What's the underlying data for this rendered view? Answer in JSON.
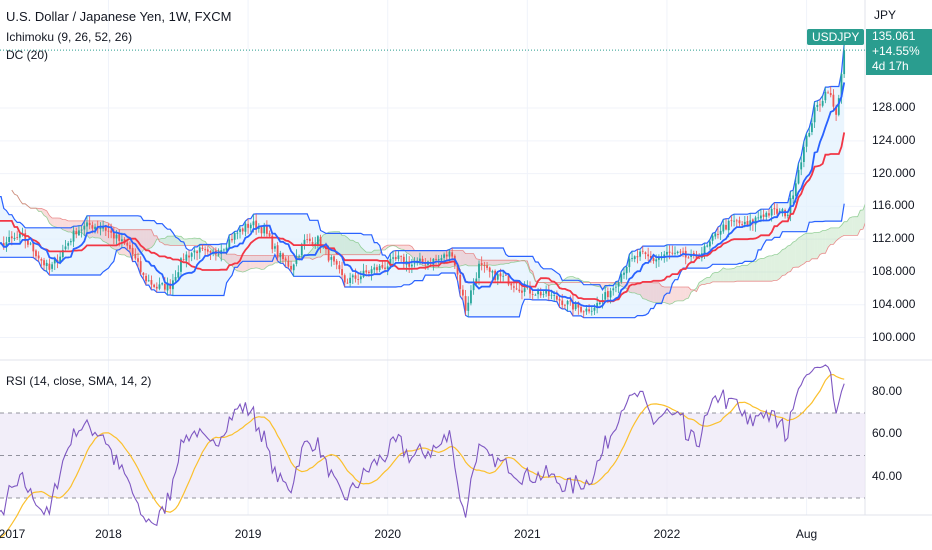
{
  "header": {
    "title": "U.S. Dollar / Japanese Yen, 1W, FXCM",
    "ichimoku_label": "Ichimoku (9, 26, 52, 26)",
    "dc_label": "DC (20)",
    "rsi_label": "RSI (14, close, SMA, 14, 2)"
  },
  "price_tag": {
    "symbol": "USDJPY",
    "price": "135.061",
    "change": "+14.55%",
    "countdown": "4d 17h"
  },
  "colors": {
    "up_candle": "#26a69a",
    "down_candle": "#ef5350",
    "tenkan": "#2962ff",
    "kijun": "#f23645",
    "donchian": "#2962ff",
    "donchian_fill": "#e3f2fd",
    "rsi_line": "#7e57c2",
    "rsi_ma": "#fbc02d",
    "rsi_band": "#ede7f6",
    "cloud_bull": "#a5d6a7",
    "cloud_bear": "#ef9a9a",
    "tag": "#2a9d8f"
  },
  "chart_data": [
    {
      "type": "candlestick",
      "title": "U.S. Dollar / Japanese Yen, 1W, FXCM",
      "y_unit": "JPY",
      "ylim": [
        97.5,
        138.5
      ],
      "y_ticks": [
        "100.000",
        "104.000",
        "108.000",
        "112.000",
        "116.000",
        "120.000",
        "124.000",
        "128.000"
      ],
      "x_ticks": [
        "2017",
        "2018",
        "2019",
        "2020",
        "2021",
        "2022",
        "Aug"
      ],
      "last_price": 135.061,
      "anchors": [
        [
          0,
          118.0
        ],
        [
          5,
          114.2
        ],
        [
          10,
          113.2
        ],
        [
          15,
          111.5
        ],
        [
          20,
          110.8
        ],
        [
          25,
          111.8
        ],
        [
          30,
          112.3
        ],
        [
          35,
          110.3
        ],
        [
          40,
          108.2
        ],
        [
          45,
          110.6
        ],
        [
          50,
          113.1
        ],
        [
          55,
          113.7
        ],
        [
          60,
          113.5
        ],
        [
          65,
          112.1
        ],
        [
          70,
          110.8
        ],
        [
          75,
          107.4
        ],
        [
          80,
          106.1
        ],
        [
          85,
          106.4
        ],
        [
          90,
          109.8
        ],
        [
          95,
          110.7
        ],
        [
          100,
          109.9
        ],
        [
          105,
          111.2
        ],
        [
          110,
          112.8
        ],
        [
          115,
          113.9
        ],
        [
          120,
          113.1
        ],
        [
          125,
          110.1
        ],
        [
          130,
          108.6
        ],
        [
          135,
          111.7
        ],
        [
          140,
          111.9
        ],
        [
          145,
          109.4
        ],
        [
          150,
          106.8
        ],
        [
          155,
          107.4
        ],
        [
          160,
          108.2
        ],
        [
          165,
          108.7
        ],
        [
          170,
          109.6
        ],
        [
          175,
          108.9
        ],
        [
          180,
          109.3
        ],
        [
          185,
          109.5
        ],
        [
          190,
          110.4
        ],
        [
          195,
          103.5
        ],
        [
          200,
          108.7
        ],
        [
          205,
          107.6
        ],
        [
          210,
          107.2
        ],
        [
          215,
          106.1
        ],
        [
          220,
          105.6
        ],
        [
          225,
          105.3
        ],
        [
          230,
          104.6
        ],
        [
          235,
          103.8
        ],
        [
          240,
          103.4
        ],
        [
          245,
          104.2
        ],
        [
          250,
          106.2
        ],
        [
          255,
          108.9
        ],
        [
          260,
          110.1
        ],
        [
          265,
          109.5
        ],
        [
          270,
          110.2
        ],
        [
          275,
          110.0
        ],
        [
          280,
          109.6
        ],
        [
          285,
          111.0
        ],
        [
          290,
          113.3
        ],
        [
          295,
          114.1
        ],
        [
          300,
          113.6
        ],
        [
          305,
          115.0
        ],
        [
          310,
          115.3
        ],
        [
          315,
          115.2
        ],
        [
          320,
          121.9
        ],
        [
          325,
          127.6
        ],
        [
          330,
          130.4
        ],
        [
          333,
          126.9
        ],
        [
          336,
          135.061
        ]
      ],
      "series": [
        {
          "name": "Ichimoku Conversion Line"
        },
        {
          "name": "Ichimoku Base Line"
        },
        {
          "name": "Donchian Channel (20)"
        }
      ]
    },
    {
      "type": "line",
      "title": "RSI (14, close, SMA, 14, 2)",
      "ylim": [
        22,
        94
      ],
      "y_ticks": [
        "40.00",
        "60.00",
        "80.00"
      ],
      "bands": {
        "upper": 70,
        "middle": 50,
        "lower": 30
      },
      "last_value": 81.5
    }
  ]
}
